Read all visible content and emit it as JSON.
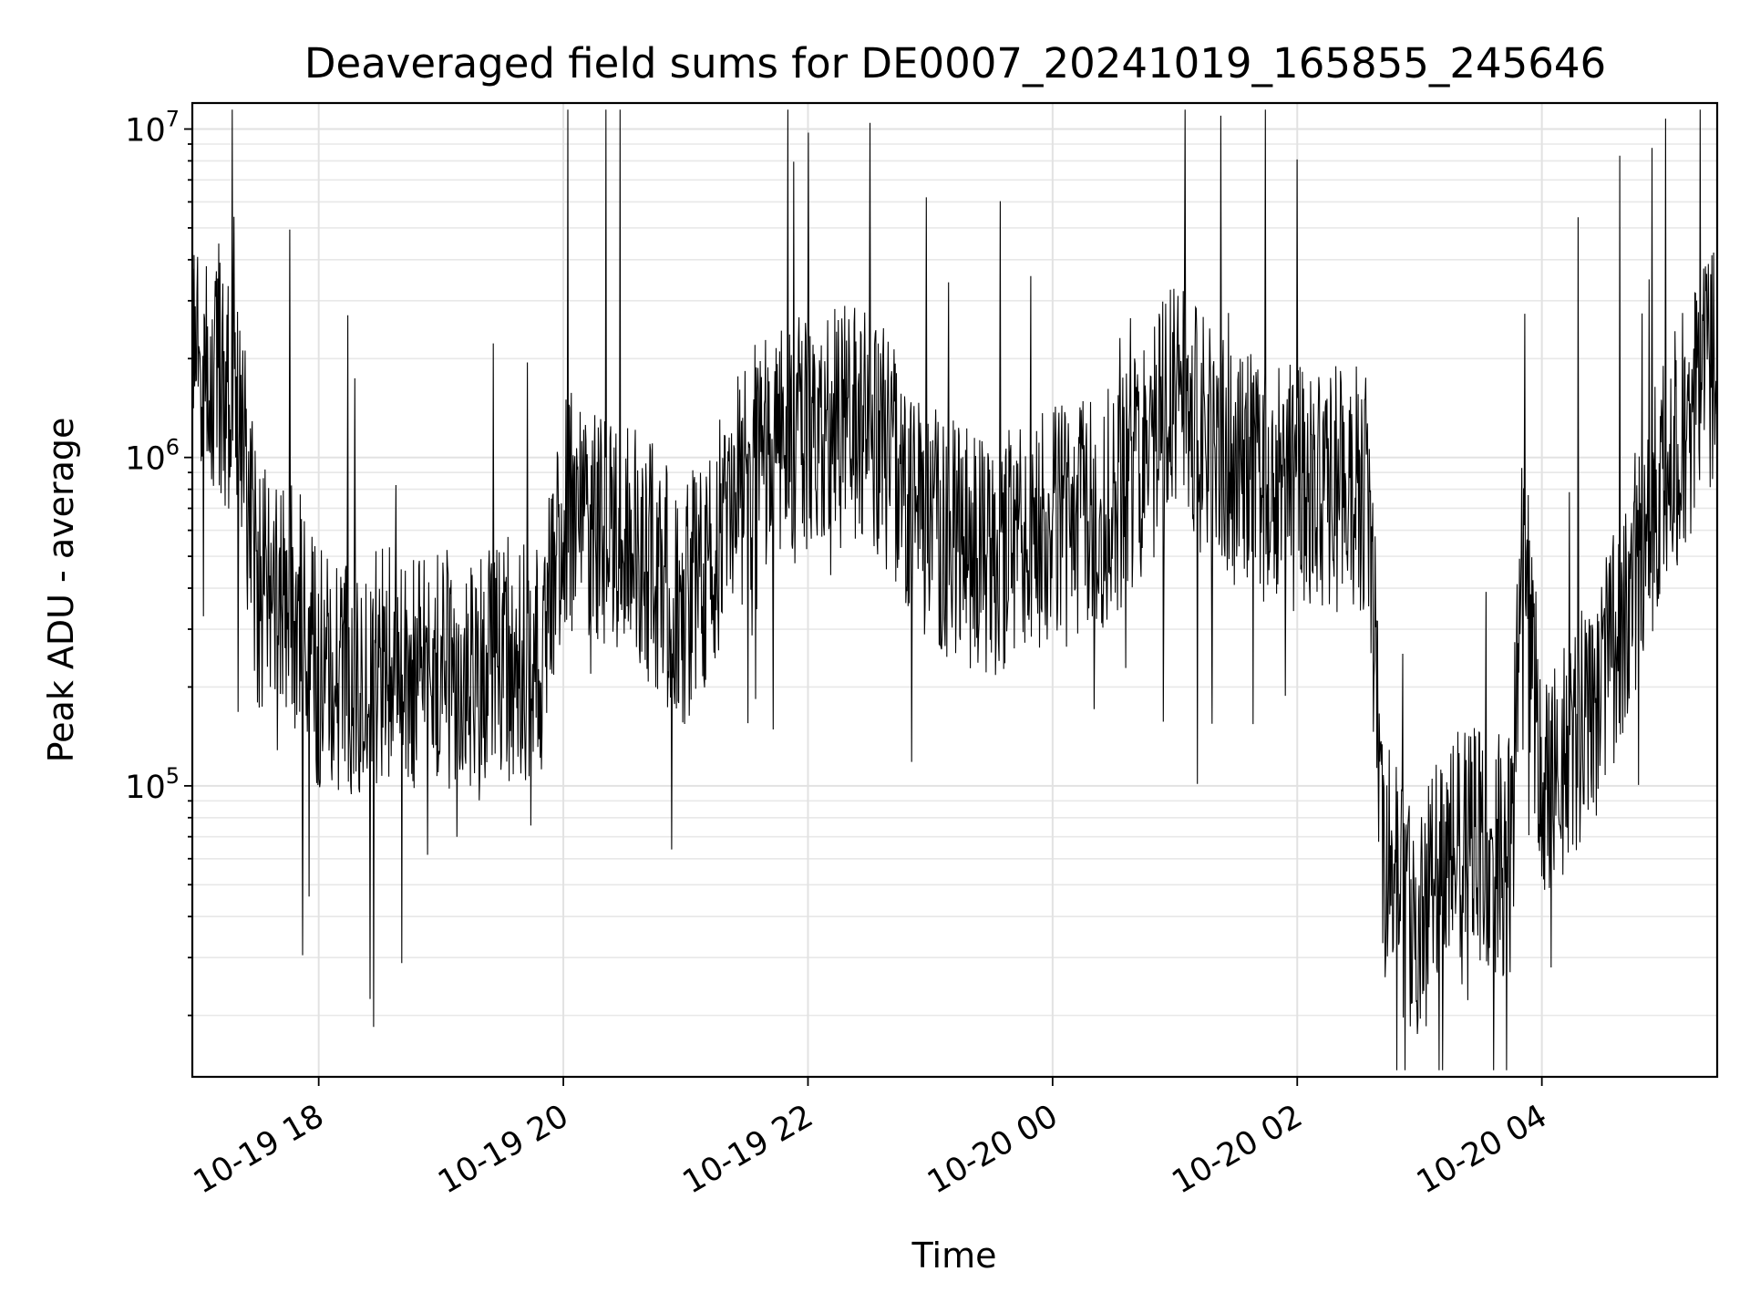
{
  "chart_data": {
    "type": "line",
    "title": "Deaveraged field sums for DE0007_20241019_165855_245646",
    "xlabel": "Time",
    "ylabel": "Peak ADU - average",
    "yscale": "log",
    "ylim": [
      13000,
      12000000
    ],
    "xlim": [
      "2024-10-19 16:58",
      "2024-10-20 05:26"
    ],
    "grid": true,
    "x_ticks": [
      {
        "t": "2024-10-19 18:00",
        "label": "10-19 18"
      },
      {
        "t": "2024-10-19 20:00",
        "label": "10-19 20"
      },
      {
        "t": "2024-10-19 22:00",
        "label": "10-19 22"
      },
      {
        "t": "2024-10-20 00:00",
        "label": "10-20 00"
      },
      {
        "t": "2024-10-20 02:00",
        "label": "10-20 02"
      },
      {
        "t": "2024-10-20 04:00",
        "label": "10-20 04"
      }
    ],
    "y_ticks": [
      {
        "value": 100000,
        "base": "10",
        "exp": "5"
      },
      {
        "value": 1000000,
        "base": "10",
        "exp": "6"
      },
      {
        "value": 10000000,
        "base": "10",
        "exp": "7"
      }
    ],
    "line_color": "#000000",
    "level_profile": {
      "description_units": "time → typical level (ADU)",
      "x": [
        "2024-10-19 16:58",
        "2024-10-19 17:20",
        "2024-10-19 17:30",
        "2024-10-19 17:50",
        "2024-10-19 18:00",
        "2024-10-19 19:00",
        "2024-10-19 19:50",
        "2024-10-19 20:00",
        "2024-10-19 20:30",
        "2024-10-19 21:00",
        "2024-10-19 21:30",
        "2024-10-19 22:00",
        "2024-10-19 22:30",
        "2024-10-19 23:00",
        "2024-10-19 23:30",
        "2024-10-20 00:00",
        "2024-10-20 00:30",
        "2024-10-20 01:00",
        "2024-10-20 01:30",
        "2024-10-20 02:00",
        "2024-10-20 02:35",
        "2024-10-20 02:42",
        "2024-10-20 03:00",
        "2024-10-20 03:15",
        "2024-10-20 03:45",
        "2024-10-20 03:50",
        "2024-10-20 04:00",
        "2024-10-20 04:30",
        "2024-10-20 05:00",
        "2024-10-20 05:26"
      ],
      "y": [
        1800000,
        1600000,
        400000,
        350000,
        220000,
        230000,
        250000,
        700000,
        600000,
        350000,
        900000,
        1200000,
        1300000,
        600000,
        500000,
        600000,
        700000,
        1500000,
        900000,
        800000,
        800000,
        60000,
        35000,
        70000,
        60000,
        600000,
        100000,
        200000,
        900000,
        2000000
      ]
    }
  }
}
